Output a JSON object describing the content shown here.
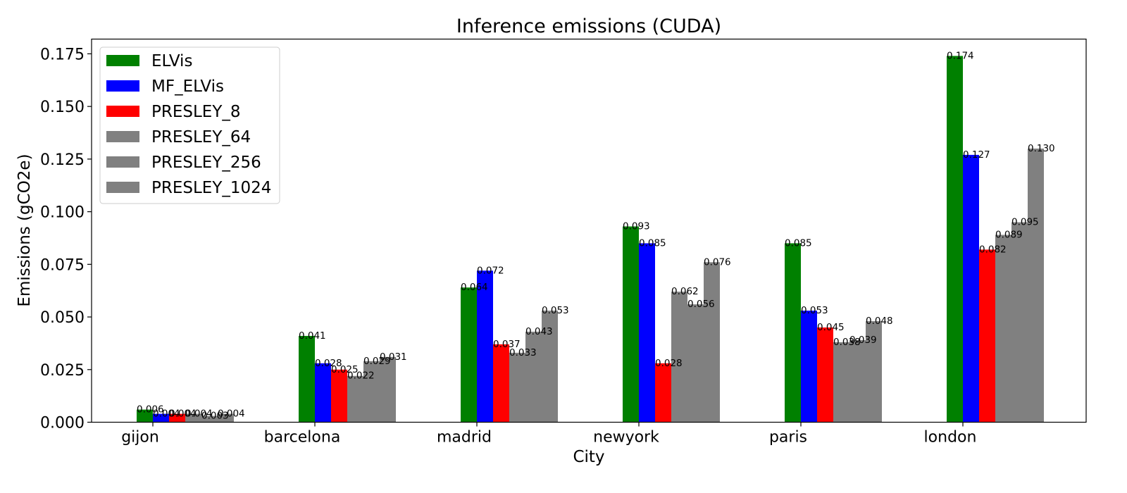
{
  "chart_data": {
    "type": "bar",
    "title": "Inference emissions (CUDA)",
    "xlabel": "City",
    "ylabel": "Emissions (gCO2e)",
    "ylim": [
      0,
      0.182
    ],
    "yticks": [
      "0.000",
      "0.025",
      "0.050",
      "0.075",
      "0.100",
      "0.125",
      "0.150",
      "0.175"
    ],
    "grid": false,
    "legend_position": "upper-left",
    "categories": [
      "gijon",
      "barcelona",
      "madrid",
      "newyork",
      "paris",
      "london"
    ],
    "series": [
      {
        "name": "ELVis",
        "color": "#008000",
        "values": [
          0.006,
          0.041,
          0.064,
          0.093,
          0.085,
          0.174
        ],
        "labels": [
          "0.006",
          "0.041",
          "0.064",
          "0.093",
          "0.085",
          "0.174"
        ]
      },
      {
        "name": "MF_ELVis",
        "color": "#0000ff",
        "values": [
          0.004,
          0.028,
          0.072,
          0.085,
          0.053,
          0.127
        ],
        "labels": [
          "0.004",
          "0.028",
          "0.072",
          "0.085",
          "0.053",
          "0.127"
        ]
      },
      {
        "name": "PRESLEY_8",
        "color": "#ff0000",
        "values": [
          0.004,
          0.025,
          0.037,
          0.028,
          0.045,
          0.082
        ],
        "labels": [
          "0.004",
          "0.025",
          "0.037",
          "0.028",
          "0.045",
          "0.082"
        ]
      },
      {
        "name": "PRESLEY_64",
        "color": "#808080",
        "values": [
          0.004,
          0.022,
          0.033,
          0.062,
          0.038,
          0.089
        ],
        "labels": [
          "0.004",
          "0.022",
          "0.033",
          "0.062",
          "0.038",
          "0.089"
        ]
      },
      {
        "name": "PRESLEY_256",
        "color": "#808080",
        "values": [
          0.003,
          0.029,
          0.043,
          0.056,
          0.039,
          0.095
        ],
        "labels": [
          "0.003",
          "0.029",
          "0.043",
          "0.056",
          "0.039",
          "0.095"
        ]
      },
      {
        "name": "PRESLEY_1024",
        "color": "#808080",
        "values": [
          0.004,
          0.031,
          0.053,
          0.076,
          0.048,
          0.13
        ],
        "labels": [
          "0.004",
          "0.031",
          "0.053",
          "0.076",
          "0.048",
          "0.130"
        ]
      }
    ]
  }
}
